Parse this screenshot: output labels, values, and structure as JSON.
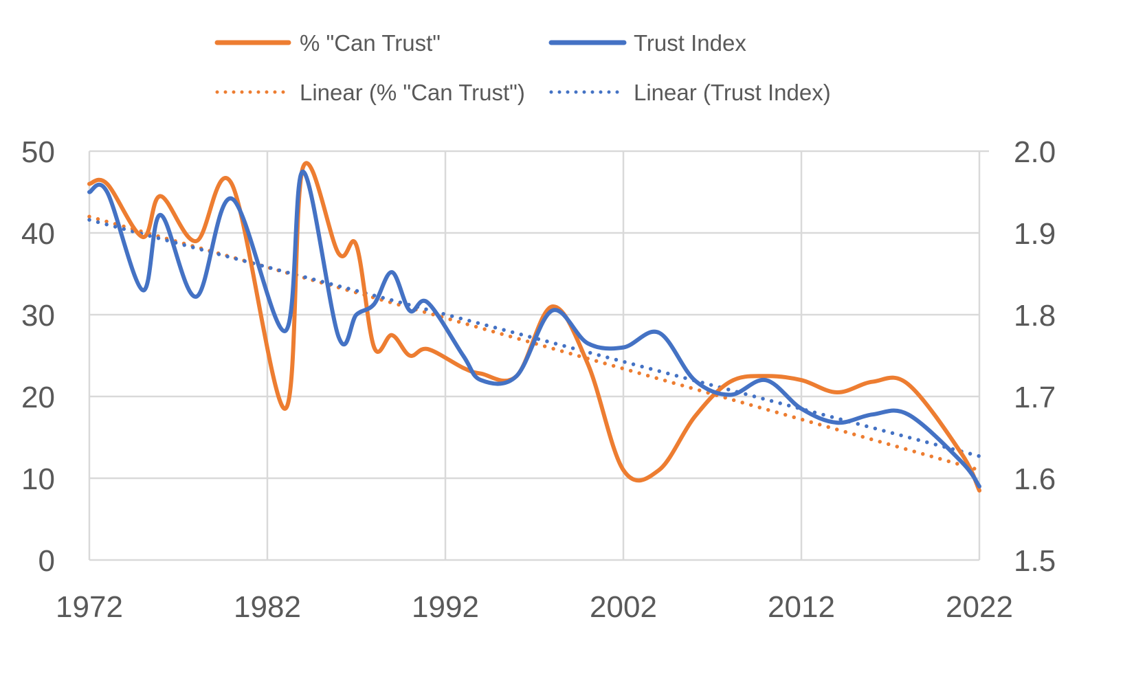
{
  "chart_data": {
    "type": "line",
    "title": "",
    "xlabel": "",
    "ylabel": "",
    "y2label": "",
    "xlim": [
      1972,
      2022
    ],
    "ylim": [
      0,
      50
    ],
    "y2lim": [
      1.5,
      2.0
    ],
    "grid": true,
    "legend_position": "top",
    "x_ticks": [
      "1972",
      "1982",
      "1992",
      "2002",
      "2012",
      "2022"
    ],
    "x_tick_values": [
      1972,
      1982,
      1992,
      2002,
      2012,
      2022
    ],
    "y_ticks": [
      "0",
      "10",
      "20",
      "30",
      "40",
      "50"
    ],
    "y_tick_values": [
      0,
      10,
      20,
      30,
      40,
      50
    ],
    "y2_ticks": [
      "1.5",
      "1.6",
      "1.7",
      "1.8",
      "1.9",
      "2.0"
    ],
    "y2_tick_values": [
      1.5,
      1.6,
      1.7,
      1.8,
      1.9,
      2.0
    ],
    "series": [
      {
        "name": "% \"Can Trust\"",
        "axis": "left",
        "color": "#ED7D31",
        "style": "solid",
        "x": [
          1972,
          1973,
          1975,
          1976,
          1978,
          1980,
          1983,
          1984,
          1986,
          1987,
          1988,
          1989,
          1990,
          1991,
          1993,
          1994,
          1996,
          1998,
          2000,
          2002,
          2004,
          2006,
          2008,
          2010,
          2012,
          2014,
          2016,
          2018,
          2021,
          2022
        ],
        "y": [
          46,
          46,
          39.5,
          44.5,
          39,
          46,
          18.5,
          48,
          37.5,
          38.5,
          26,
          27.5,
          25,
          25.8,
          23.5,
          22.8,
          22.5,
          31,
          24,
          11,
          11,
          17.5,
          21.8,
          22.5,
          22,
          20.5,
          21.8,
          21.5,
          13,
          8.5
        ]
      },
      {
        "name": "Trust Index",
        "axis": "right",
        "color": "#4472C4",
        "style": "solid",
        "x": [
          1972,
          1973,
          1975,
          1976,
          1978,
          1980,
          1983,
          1984,
          1986,
          1987,
          1988,
          1989,
          1990,
          1991,
          1993,
          1994,
          1996,
          1998,
          2000,
          2002,
          2004,
          2006,
          2008,
          2010,
          2012,
          2014,
          2016,
          2018,
          2021,
          2022
        ],
        "y": [
          1.95,
          1.95,
          1.83,
          1.922,
          1.822,
          1.942,
          1.78,
          1.975,
          1.773,
          1.8,
          1.813,
          1.852,
          1.805,
          1.815,
          1.75,
          1.72,
          1.725,
          1.805,
          1.765,
          1.76,
          1.778,
          1.72,
          1.702,
          1.72,
          1.685,
          1.668,
          1.678,
          1.678,
          1.62,
          1.59
        ]
      },
      {
        "name": "Linear (% \"Can Trust\")",
        "axis": "left",
        "color": "#ED7D31",
        "style": "dotted",
        "x": [
          1972,
          2022
        ],
        "y": [
          42,
          11
        ]
      },
      {
        "name": "Linear (Trust Index)",
        "axis": "right",
        "color": "#4472C4",
        "style": "dotted",
        "x": [
          1972,
          2022
        ],
        "y": [
          1.916,
          1.627
        ]
      }
    ],
    "colors": {
      "grid": "#D9D9D9",
      "text": "#595959"
    }
  }
}
